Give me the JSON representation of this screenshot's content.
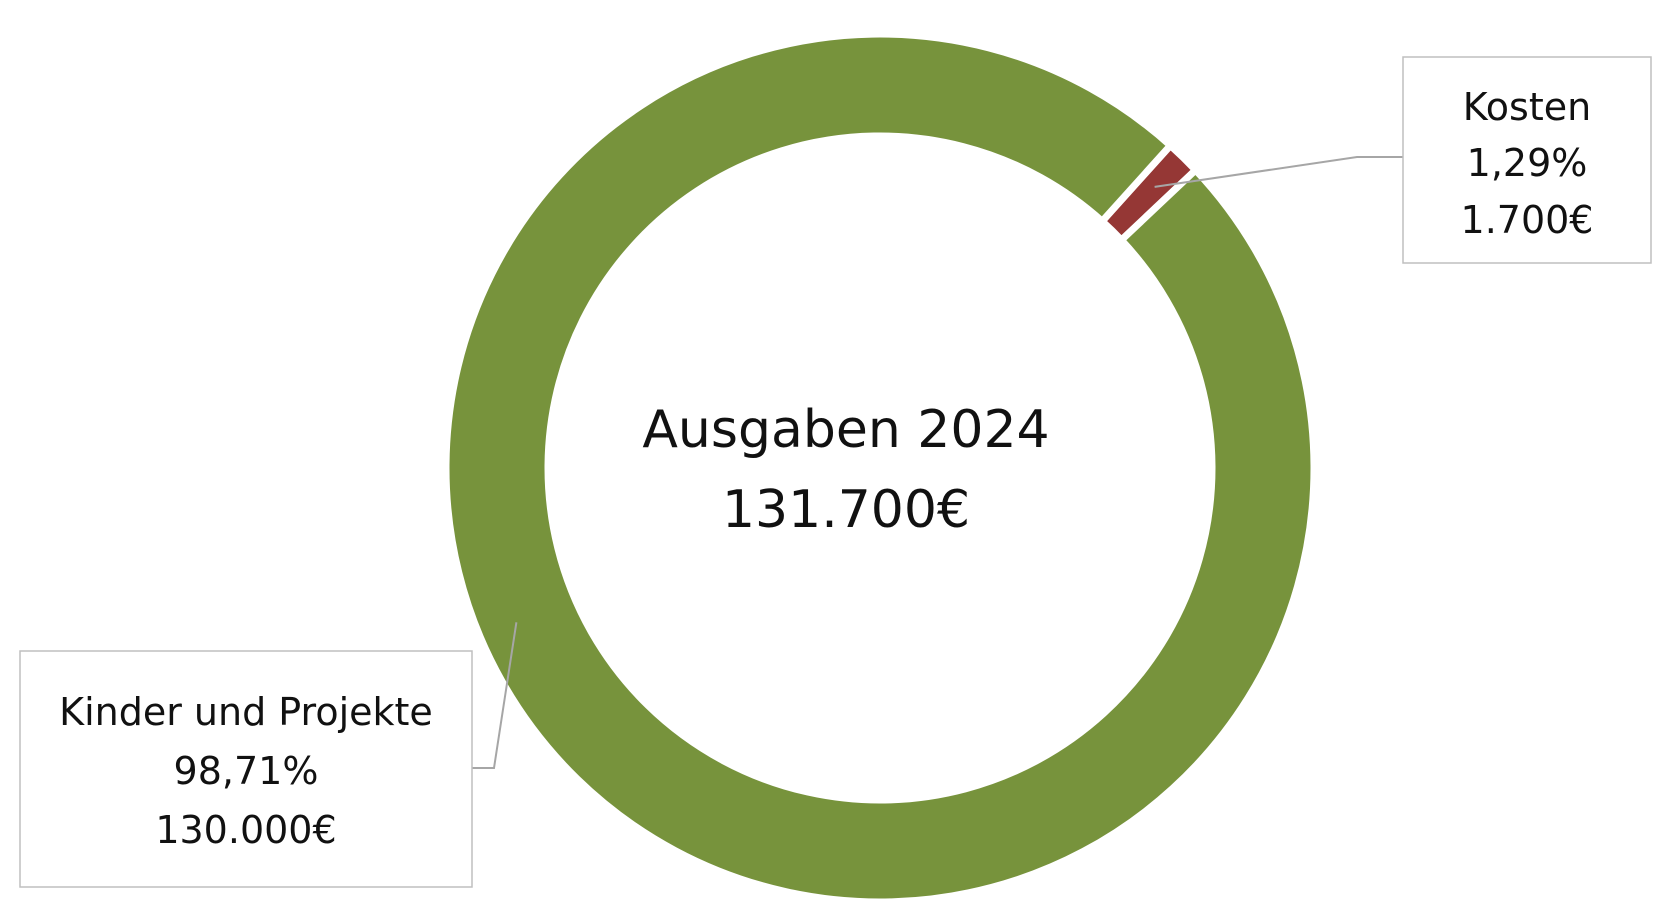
{
  "colors": {
    "background": "#ffffff",
    "kinder": "#77933c",
    "kosten": "#953735",
    "separator": "#ffffff",
    "leader": "#a6a6a6",
    "callout_border": "#bfbfbf"
  },
  "chart_data": {
    "type": "donut",
    "title": "Ausgaben 2024",
    "total_label": "131.700€",
    "total": 131700,
    "slices": [
      {
        "name": "Kosten",
        "value": 1700,
        "percent_label": "1,29%",
        "value_label": "1.700€",
        "color": "#953735"
      },
      {
        "name": "Kinder und Projekte",
        "value": 130000,
        "percent_label": "98,71%",
        "value_label": "130.000€",
        "color": "#77933c"
      }
    ]
  }
}
